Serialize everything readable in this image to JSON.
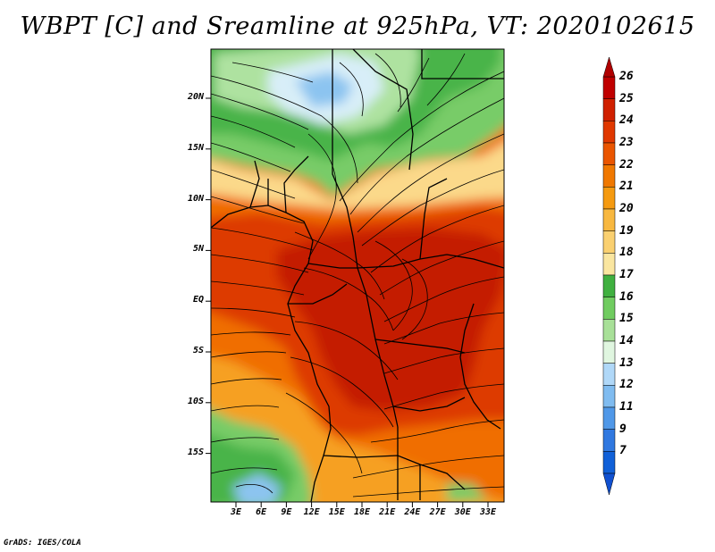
{
  "title": "WBPT [C] and Sreamline at 925hPa, VT: 2020102615",
  "footer": "GrADS: IGES/COLA",
  "y_ticks": [
    "20N",
    "15N",
    "10N",
    "5N",
    "EQ",
    "5S",
    "10S",
    "15S"
  ],
  "x_ticks": [
    "3E",
    "6E",
    "9E",
    "12E",
    "15E",
    "18E",
    "21E",
    "24E",
    "27E",
    "30E",
    "33E"
  ],
  "colorbar": {
    "labels": [
      "26",
      "25",
      "24",
      "23",
      "22",
      "21",
      "20",
      "19",
      "18",
      "17",
      "16",
      "15",
      "14",
      "13",
      "12",
      "11",
      "9",
      "7"
    ],
    "colors": [
      "#c00000",
      "#d02000",
      "#e03800",
      "#ea5500",
      "#f07800",
      "#f59a10",
      "#f8b840",
      "#fad070",
      "#fae6a0",
      "#40b040",
      "#70cc60",
      "#a8e098",
      "#e0f6e0",
      "#b0d8f8",
      "#80bcf0",
      "#5098e8",
      "#3078e0",
      "#1060d8"
    ]
  },
  "map_colors": {
    "deep": "#c41a00",
    "red": "#dd3b00",
    "orange": "#f06e00",
    "amber": "#f6a020",
    "light": "#fbd98a",
    "green_dark": "#48b448",
    "green": "#78cc68",
    "green_light": "#aee2a0",
    "pale": "#d8eef8",
    "blue": "#8cc4f0"
  }
}
